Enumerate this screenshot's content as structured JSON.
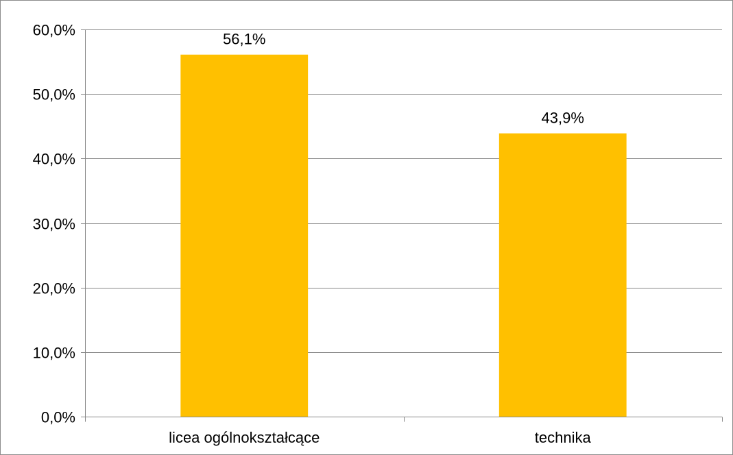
{
  "chart_data": {
    "type": "bar",
    "title": "",
    "xlabel": "",
    "ylabel": "",
    "categories": [
      "licea ogólnokształcące",
      "technika"
    ],
    "values": [
      56.1,
      43.9
    ],
    "data_labels": [
      "56,1%",
      "43,9%"
    ],
    "ylim": [
      0,
      60
    ],
    "y_ticks": [
      0,
      10,
      20,
      30,
      40,
      50,
      60
    ],
    "y_tick_labels": [
      "0,0%",
      "10,0%",
      "20,0%",
      "30,0%",
      "40,0%",
      "50,0%",
      "60,0%"
    ],
    "grid": true,
    "legend": "none",
    "bar_color": "#FFC000",
    "grid_color": "#868686"
  }
}
